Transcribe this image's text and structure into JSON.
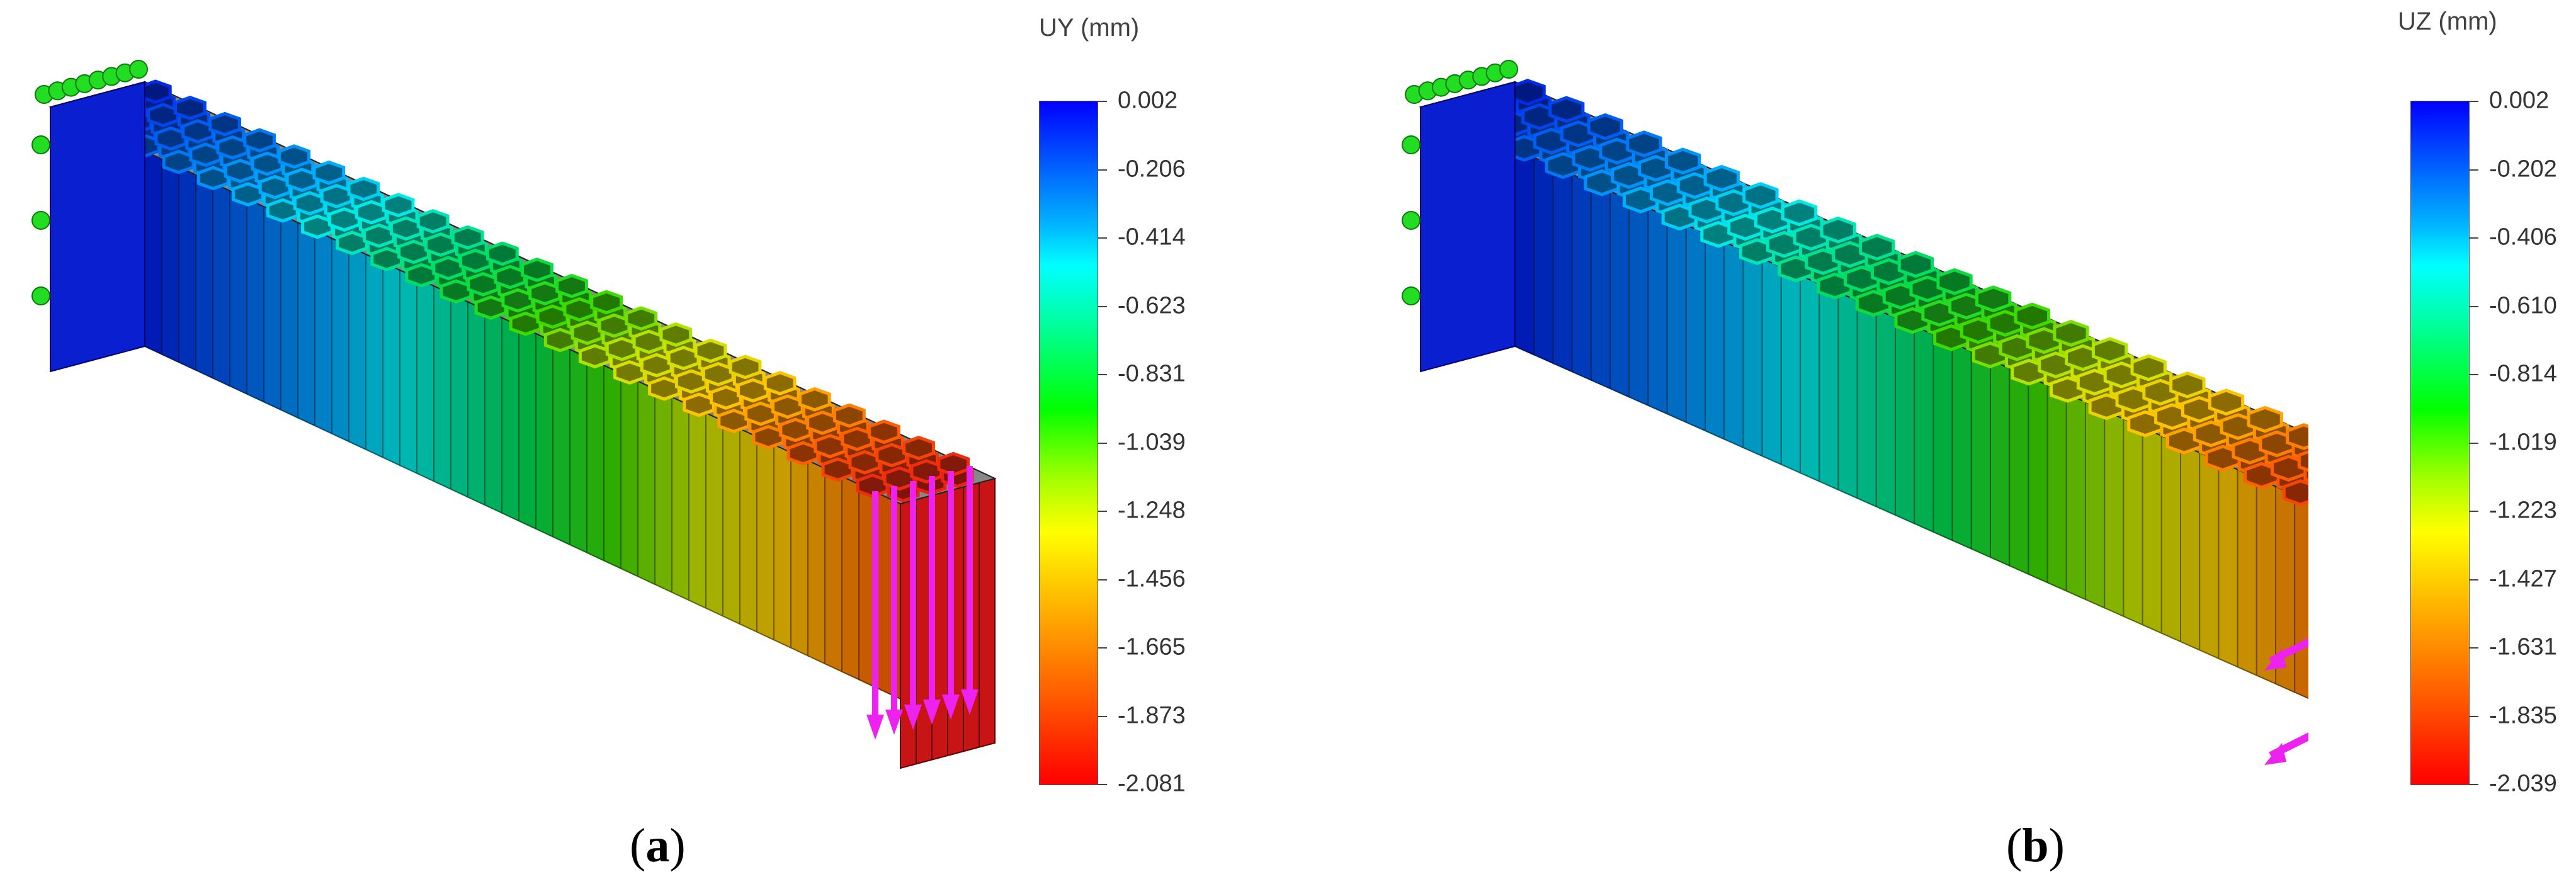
{
  "panels": [
    {
      "caption_open": "(",
      "caption_letter": "a",
      "caption_close": ")",
      "scale_title": "UY (mm)",
      "ticks": [
        "0.002",
        "-0.206",
        "-0.414",
        "-0.623",
        "-0.831",
        "-1.039",
        "-1.248",
        "-1.456",
        "-1.665",
        "-1.873",
        "-2.081"
      ],
      "load_direction": "vertical"
    },
    {
      "caption_open": "(",
      "caption_letter": "b",
      "caption_close": ")",
      "scale_title": "UZ (mm)",
      "ticks": [
        "0.002",
        "-0.202",
        "-0.406",
        "-0.610",
        "-0.814",
        "-1.019",
        "-1.223",
        "-1.427",
        "-1.631",
        "-1.835",
        "-2.039"
      ],
      "load_direction": "lateral"
    }
  ],
  "colors": {
    "fixture": "#22dd22",
    "load_arrow": "#ee22ee",
    "scale": [
      "#0000ff",
      "#00ffff",
      "#00ff00",
      "#ffff00",
      "#ff0000"
    ]
  }
}
